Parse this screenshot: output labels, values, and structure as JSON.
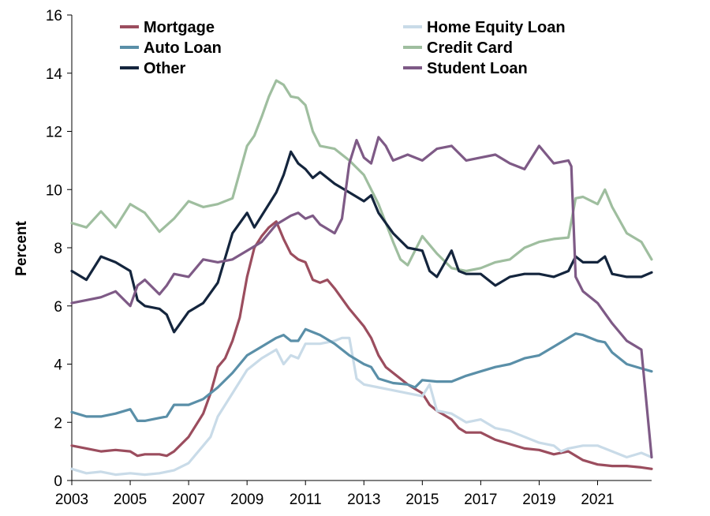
{
  "chart_data": {
    "type": "line",
    "title": "",
    "xlabel": "",
    "ylabel": "Percent",
    "xlim": [
      2003,
      2022.85
    ],
    "ylim": [
      0,
      16
    ],
    "grid": false,
    "legend_position": "top",
    "x_ticks": [
      2003,
      2005,
      2007,
      2009,
      2011,
      2013,
      2015,
      2017,
      2019,
      2021
    ],
    "y_ticks": [
      0,
      2,
      4,
      6,
      8,
      10,
      12,
      14,
      16
    ],
    "series": [
      {
        "name": "Mortgage",
        "color": "#9b4d5e",
        "x": [
          2003,
          2003.5,
          2004,
          2004.5,
          2005,
          2005.25,
          2005.5,
          2006,
          2006.25,
          2006.5,
          2007,
          2007.5,
          2007.75,
          2008,
          2008.25,
          2008.5,
          2008.75,
          2009,
          2009.25,
          2009.5,
          2009.75,
          2010,
          2010.25,
          2010.5,
          2010.75,
          2011,
          2011.25,
          2011.5,
          2011.75,
          2012,
          2012.5,
          2013,
          2013.25,
          2013.5,
          2013.75,
          2014,
          2014.5,
          2015,
          2015.25,
          2015.5,
          2016,
          2016.25,
          2016.5,
          2017,
          2017.5,
          2018,
          2018.5,
          2019,
          2019.5,
          2020,
          2020.5,
          2021,
          2021.5,
          2022,
          2022.5,
          2022.85
        ],
        "values": [
          1.2,
          1.1,
          1.0,
          1.05,
          1.0,
          0.85,
          0.9,
          0.9,
          0.85,
          1.0,
          1.5,
          2.3,
          3.0,
          3.9,
          4.2,
          4.8,
          5.6,
          7.0,
          8.0,
          8.4,
          8.7,
          8.9,
          8.3,
          7.8,
          7.6,
          7.5,
          6.9,
          6.8,
          6.9,
          6.6,
          5.9,
          5.3,
          4.9,
          4.3,
          3.9,
          3.7,
          3.3,
          3.0,
          2.6,
          2.4,
          2.1,
          1.8,
          1.65,
          1.65,
          1.4,
          1.25,
          1.1,
          1.05,
          0.9,
          1.0,
          0.7,
          0.55,
          0.5,
          0.5,
          0.45,
          0.4
        ]
      },
      {
        "name": "Home Equity Loan",
        "color": "#c9dbe8",
        "x": [
          2003,
          2003.5,
          2004,
          2004.5,
          2005,
          2005.5,
          2006,
          2006.5,
          2007,
          2007.5,
          2007.75,
          2008,
          2008.5,
          2009,
          2009.5,
          2010,
          2010.25,
          2010.5,
          2010.75,
          2011,
          2011.5,
          2012,
          2012.25,
          2012.5,
          2012.75,
          2013,
          2013.5,
          2014,
          2014.5,
          2015,
          2015.25,
          2015.5,
          2016,
          2016.5,
          2017,
          2017.5,
          2018,
          2018.5,
          2019,
          2019.5,
          2019.75,
          2020,
          2020.5,
          2021,
          2021.5,
          2022,
          2022.5,
          2022.85
        ],
        "values": [
          0.4,
          0.25,
          0.3,
          0.2,
          0.25,
          0.2,
          0.25,
          0.35,
          0.6,
          1.2,
          1.5,
          2.2,
          3.0,
          3.8,
          4.2,
          4.5,
          4.0,
          4.3,
          4.2,
          4.7,
          4.7,
          4.8,
          4.9,
          4.9,
          3.5,
          3.3,
          3.2,
          3.1,
          3.0,
          2.9,
          3.3,
          2.4,
          2.3,
          2.0,
          2.1,
          1.8,
          1.7,
          1.5,
          1.3,
          1.2,
          1.0,
          1.1,
          1.2,
          1.2,
          1.0,
          0.8,
          0.95,
          0.8
        ]
      },
      {
        "name": "Auto Loan",
        "color": "#5a8fa8",
        "x": [
          2003,
          2003.5,
          2004,
          2004.5,
          2005,
          2005.25,
          2005.5,
          2006,
          2006.25,
          2006.5,
          2007,
          2007.5,
          2008,
          2008.5,
          2009,
          2009.5,
          2010,
          2010.25,
          2010.5,
          2010.75,
          2011,
          2011.5,
          2012,
          2012.5,
          2013,
          2013.25,
          2013.5,
          2014,
          2014.5,
          2014.75,
          2015,
          2015.5,
          2016,
          2016.5,
          2017,
          2017.5,
          2018,
          2018.5,
          2019,
          2019.5,
          2020,
          2020.25,
          2020.5,
          2021,
          2021.25,
          2021.5,
          2022,
          2022.5,
          2022.85
        ],
        "values": [
          2.35,
          2.2,
          2.2,
          2.3,
          2.45,
          2.05,
          2.05,
          2.15,
          2.2,
          2.6,
          2.6,
          2.8,
          3.2,
          3.7,
          4.3,
          4.6,
          4.9,
          5.0,
          4.8,
          4.8,
          5.2,
          5.0,
          4.7,
          4.3,
          4.0,
          3.9,
          3.5,
          3.35,
          3.3,
          3.2,
          3.45,
          3.4,
          3.4,
          3.6,
          3.75,
          3.9,
          4.0,
          4.2,
          4.3,
          4.6,
          4.9,
          5.05,
          5.0,
          4.8,
          4.75,
          4.4,
          4.0,
          3.85,
          3.75
        ]
      },
      {
        "name": "Credit Card",
        "color": "#9fbe9f",
        "x": [
          2003,
          2003.5,
          2004,
          2004.5,
          2005,
          2005.5,
          2006,
          2006.5,
          2007,
          2007.5,
          2008,
          2008.5,
          2009,
          2009.25,
          2009.5,
          2009.75,
          2010,
          2010.25,
          2010.5,
          2010.75,
          2011,
          2011.25,
          2011.5,
          2012,
          2012.5,
          2013,
          2013.5,
          2014,
          2014.25,
          2014.5,
          2015,
          2015.5,
          2016,
          2016.5,
          2017,
          2017.5,
          2018,
          2018.5,
          2019,
          2019.5,
          2020,
          2020.25,
          2020.5,
          2021,
          2021.25,
          2021.5,
          2022,
          2022.5,
          2022.85
        ],
        "values": [
          8.85,
          8.7,
          9.25,
          8.7,
          9.5,
          9.2,
          8.55,
          9.0,
          9.6,
          9.4,
          9.5,
          9.7,
          11.5,
          11.85,
          12.5,
          13.2,
          13.75,
          13.6,
          13.2,
          13.15,
          12.9,
          12.0,
          11.5,
          11.4,
          11.0,
          10.5,
          9.5,
          8.2,
          7.6,
          7.4,
          8.4,
          7.8,
          7.3,
          7.2,
          7.3,
          7.5,
          7.6,
          8.0,
          8.2,
          8.3,
          8.35,
          9.7,
          9.75,
          9.5,
          10.0,
          9.4,
          8.5,
          8.2,
          7.6
        ]
      },
      {
        "name": "Other",
        "color": "#14253d",
        "x": [
          2003,
          2003.5,
          2004,
          2004.5,
          2005,
          2005.25,
          2005.5,
          2006,
          2006.25,
          2006.5,
          2007,
          2007.5,
          2008,
          2008.5,
          2009,
          2009.25,
          2009.5,
          2010,
          2010.25,
          2010.5,
          2010.75,
          2011,
          2011.25,
          2011.5,
          2012,
          2012.5,
          2013,
          2013.25,
          2013.5,
          2014,
          2014.5,
          2015,
          2015.25,
          2015.5,
          2016,
          2016.25,
          2016.5,
          2017,
          2017.5,
          2018,
          2018.5,
          2019,
          2019.5,
          2020,
          2020.25,
          2020.5,
          2021,
          2021.25,
          2021.5,
          2022,
          2022.5,
          2022.85
        ],
        "values": [
          7.2,
          6.9,
          7.7,
          7.5,
          7.2,
          6.2,
          6.0,
          5.9,
          5.7,
          5.1,
          5.8,
          6.1,
          6.8,
          8.5,
          9.2,
          8.7,
          9.1,
          9.9,
          10.5,
          11.3,
          10.9,
          10.7,
          10.4,
          10.6,
          10.2,
          9.9,
          9.6,
          9.8,
          9.2,
          8.5,
          8.0,
          7.9,
          7.2,
          7.0,
          7.9,
          7.2,
          7.1,
          7.1,
          6.7,
          7.0,
          7.1,
          7.1,
          7.0,
          7.2,
          7.7,
          7.5,
          7.5,
          7.7,
          7.1,
          7.0,
          7.0,
          7.15
        ]
      },
      {
        "name": "Student Loan",
        "color": "#7e5a86",
        "x": [
          2003,
          2003.5,
          2004,
          2004.5,
          2005,
          2005.25,
          2005.5,
          2006,
          2006.25,
          2006.5,
          2007,
          2007.5,
          2008,
          2008.5,
          2009,
          2009.5,
          2010,
          2010.5,
          2010.75,
          2011,
          2011.25,
          2011.5,
          2012,
          2012.25,
          2012.5,
          2012.75,
          2013,
          2013.25,
          2013.5,
          2013.75,
          2014,
          2014.5,
          2015,
          2015.5,
          2016,
          2016.5,
          2017,
          2017.5,
          2018,
          2018.5,
          2019,
          2019.5,
          2020,
          2020.1,
          2020.25,
          2020.5,
          2021,
          2021.5,
          2022,
          2022.5,
          2022.85
        ],
        "values": [
          6.1,
          6.2,
          6.3,
          6.5,
          6.0,
          6.7,
          6.9,
          6.4,
          6.7,
          7.1,
          7.0,
          7.6,
          7.5,
          7.6,
          7.9,
          8.2,
          8.8,
          9.1,
          9.2,
          9.0,
          9.1,
          8.8,
          8.5,
          9.0,
          10.9,
          11.7,
          11.1,
          10.9,
          11.8,
          11.5,
          11.0,
          11.2,
          11.0,
          11.4,
          11.5,
          11.0,
          11.1,
          11.2,
          10.9,
          10.7,
          11.5,
          10.9,
          11.0,
          10.8,
          7.0,
          6.5,
          6.1,
          5.4,
          4.8,
          4.5,
          0.8
        ]
      }
    ]
  }
}
